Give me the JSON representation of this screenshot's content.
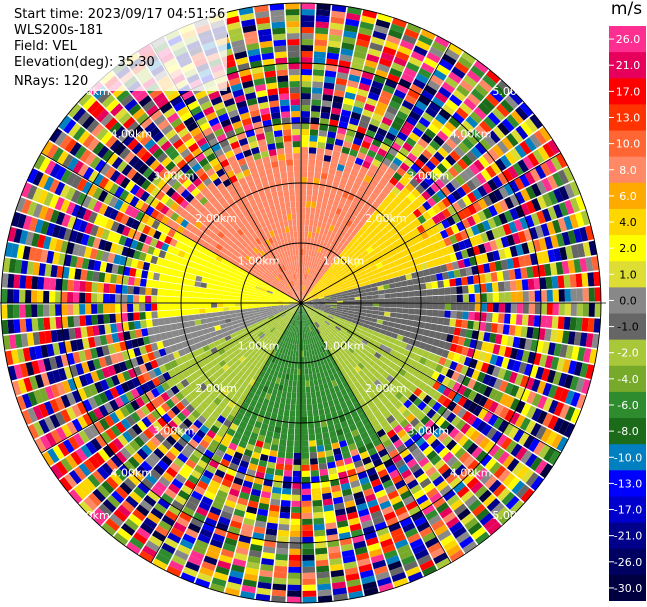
{
  "header": {
    "start_time": "Start time: 2023/09/17 04:51:56",
    "instrument": "WLS200s-181",
    "field": "Field: VEL",
    "elevation": "Elevation(deg): 35.30",
    "nrays": "NRays: 120"
  },
  "colorbar": {
    "unit": "m/s",
    "ticks": [
      "26.0",
      "21.0",
      "17.0",
      "13.0",
      "10.0",
      "8.0",
      "6.0",
      "4.0",
      "2.0",
      "1.0",
      "0.0",
      "-1.0",
      "-2.0",
      "-4.0",
      "-6.0",
      "-8.0",
      "-10.0",
      "-13.0",
      "-17.0",
      "-21.0",
      "-26.0",
      "-30.0"
    ],
    "colors": [
      "#ff2f92",
      "#e6005c",
      "#ff0000",
      "#ff3300",
      "#ff6633",
      "#ff8866",
      "#ffaa00",
      "#ffd700",
      "#ffff00",
      "#dddd33",
      "#888888",
      "#666666",
      "#a8c83a",
      "#77a92a",
      "#2e8b2e",
      "#1b6b1b",
      "#0080c0",
      "#0000ff",
      "#0000cc",
      "#00008b",
      "#000060",
      "#000040"
    ]
  },
  "chart_data": {
    "type": "ppi",
    "title": "",
    "range_labels": [
      "1.00km",
      "2.00km",
      "3.00km",
      "4.00km",
      "5.00km"
    ],
    "range_rings_km": [
      1,
      2,
      3,
      4,
      5
    ],
    "spokes_deg": [
      0,
      30,
      60,
      90,
      120,
      150,
      180,
      210,
      240,
      270,
      300,
      330
    ],
    "nrays": 120,
    "max_range_km": 5,
    "clean_range_km": 2.2,
    "velocity_regions": [
      {
        "az_from": 300,
        "az_to": 360,
        "velocity": 8.0
      },
      {
        "az_from": 0,
        "az_to": 40,
        "velocity": 8.0
      },
      {
        "az_from": 40,
        "az_to": 75,
        "velocity": 4.0
      },
      {
        "az_from": 75,
        "az_to": 110,
        "velocity": -1.0
      },
      {
        "az_from": 110,
        "az_to": 150,
        "velocity": -2.0
      },
      {
        "az_from": 150,
        "az_to": 210,
        "velocity": -6.0
      },
      {
        "az_from": 210,
        "az_to": 245,
        "velocity": -2.0
      },
      {
        "az_from": 245,
        "az_to": 265,
        "velocity": 0.0
      },
      {
        "az_from": 265,
        "az_to": 300,
        "velocity": 2.0
      }
    ]
  }
}
